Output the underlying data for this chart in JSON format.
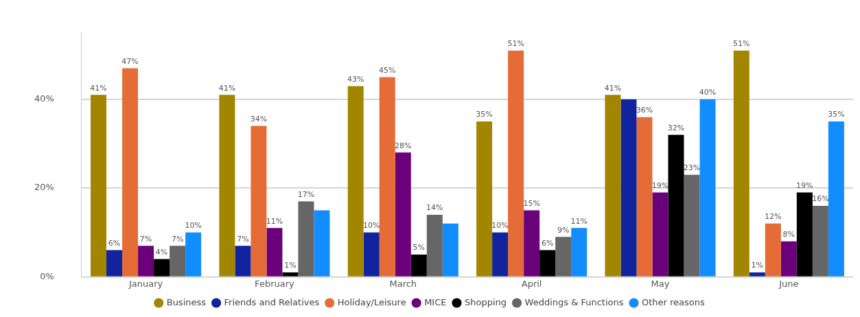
{
  "chart_data": {
    "type": "bar",
    "categories": [
      "January",
      "February",
      "March",
      "April",
      "May",
      "June"
    ],
    "series": [
      {
        "name": "Business",
        "color": "#a38600",
        "values": [
          41,
          41,
          43,
          35,
          41,
          51
        ],
        "value_labels": [
          "41%",
          "41%",
          "43%",
          "35%",
          "41%",
          "51%"
        ]
      },
      {
        "name": "Friends and Relatives",
        "color": "#12239e",
        "values": [
          6,
          7,
          10,
          10,
          40,
          1
        ],
        "value_labels": [
          "6%",
          "7%",
          "10%",
          "10%",
          null,
          "1%"
        ]
      },
      {
        "name": "Holiday/Leisure",
        "color": "#e66c37",
        "values": [
          47,
          34,
          45,
          51,
          36,
          12
        ],
        "value_labels": [
          "47%",
          "34%",
          "45%",
          "51%",
          "36%",
          "12%"
        ]
      },
      {
        "name": "MICE",
        "color": "#6b007b",
        "values": [
          7,
          11,
          28,
          15,
          19,
          8
        ],
        "value_labels": [
          "7%",
          "11%",
          "28%",
          "15%",
          "19%",
          "8%"
        ]
      },
      {
        "name": "Shopping",
        "color": "#000000",
        "values": [
          4,
          1,
          5,
          6,
          32,
          19
        ],
        "value_labels": [
          "4%",
          "1%",
          "5%",
          "6%",
          "32%",
          "19%"
        ]
      },
      {
        "name": "Weddings & Functions",
        "color": "#666666",
        "values": [
          7,
          17,
          14,
          9,
          23,
          16
        ],
        "value_labels": [
          "7%",
          "17%",
          "14%",
          "9%",
          "23%",
          "16%"
        ]
      },
      {
        "name": "Other reasons",
        "color": "#118dff",
        "values": [
          10,
          15,
          12,
          11,
          40,
          35
        ],
        "value_labels": [
          "10%",
          null,
          null,
          "11%",
          "40%",
          "35%"
        ]
      }
    ],
    "ylim": [
      0,
      55
    ],
    "yticks": [
      {
        "value": 0,
        "label": "0%"
      },
      {
        "value": 20,
        "label": "20%"
      },
      {
        "value": 40,
        "label": "40%"
      }
    ],
    "grid": "y",
    "legend": "bottom"
  }
}
